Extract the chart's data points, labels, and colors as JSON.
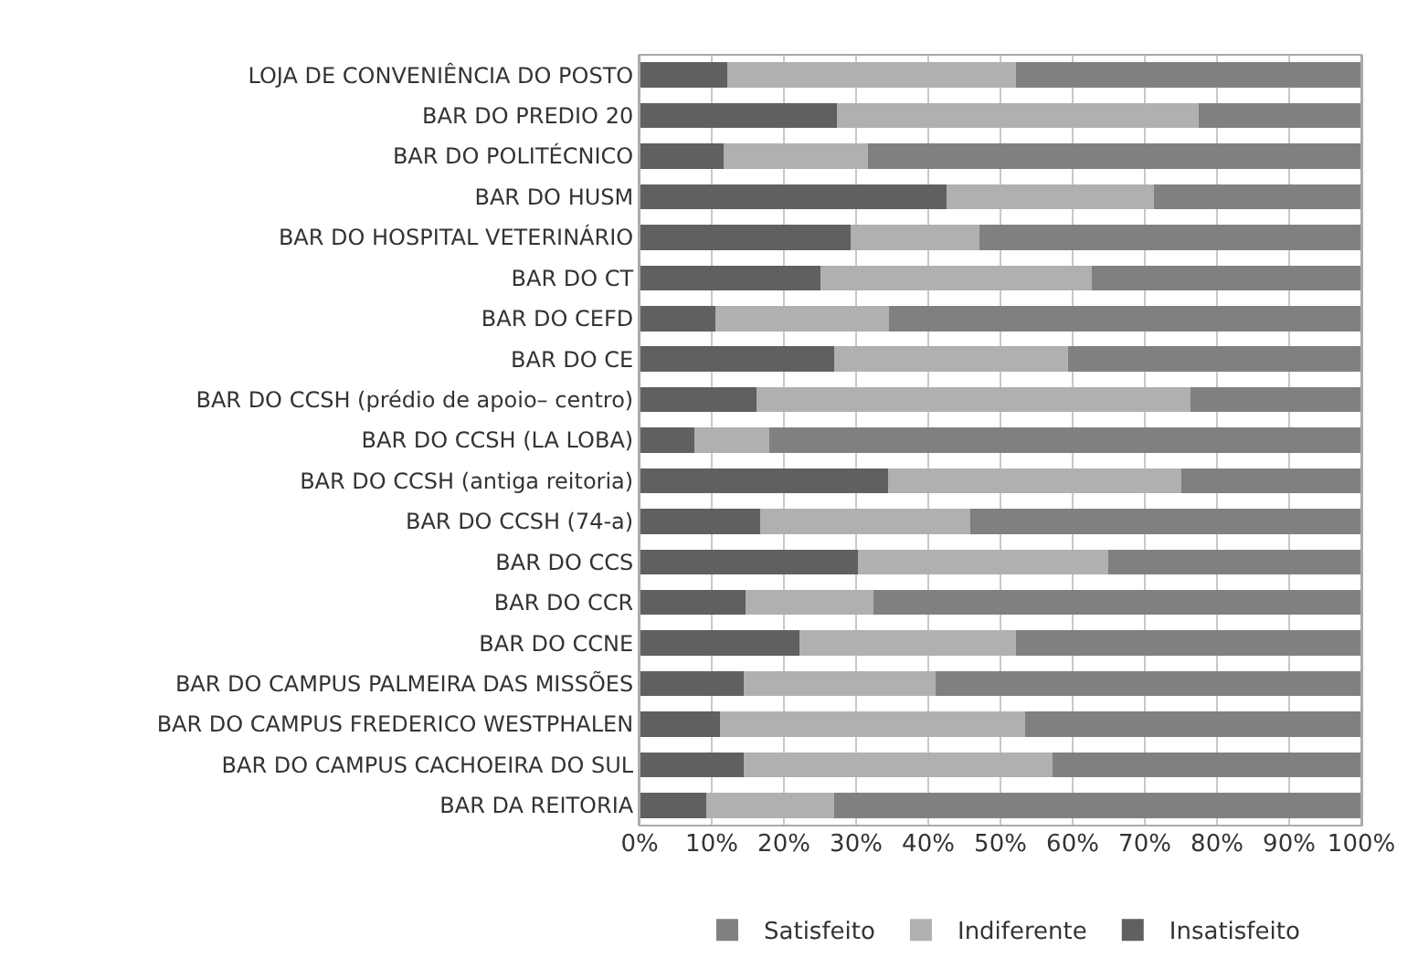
{
  "chart_data": {
    "type": "bar",
    "orientation": "horizontal",
    "stacked": true,
    "categories": [
      "LOJA DE CONVENIÊNCIA DO POSTO",
      "BAR DO PREDIO 20",
      "BAR DO POLITÉCNICO",
      "BAR DO HUSM",
      "BAR DO HOSPITAL VETERINÁRIO",
      "BAR DO CT",
      "BAR DO CEFD",
      "BAR DO CE",
      "BAR DO CCSH (prédio de apoio– centro)",
      "BAR DO CCSH (LA LOBA)",
      "BAR DO CCSH (antiga reitoria)",
      "BAR DO CCSH (74-a)",
      "BAR DO CCS",
      "BAR DO CCR",
      "BAR DO CCNE",
      "BAR DO CAMPUS PALMEIRA DAS MISSÕES",
      "BAR DO CAMPUS FREDERICO WESTPHALEN",
      "BAR DO CAMPUS CACHOEIRA DO SUL",
      "BAR DA REITORIA"
    ],
    "series": [
      {
        "name": "Insatisfeito",
        "color": "#606060",
        "values": [
          12.1,
          27.3,
          11.7,
          42.5,
          29.3,
          25.1,
          10.5,
          27.0,
          16.2,
          7.6,
          34.4,
          16.7,
          30.3,
          14.7,
          22.2,
          14.4,
          11.2,
          14.4,
          9.2
        ]
      },
      {
        "name": "Indiferente",
        "color": "#b0b0b0",
        "values": [
          40.0,
          50.2,
          20.0,
          28.8,
          17.8,
          37.6,
          24.0,
          32.4,
          60.1,
          10.4,
          40.7,
          29.1,
          34.6,
          17.7,
          29.9,
          26.6,
          42.2,
          42.8,
          17.8
        ]
      },
      {
        "name": "Satisfeito",
        "color": "#808080",
        "values": [
          47.9,
          22.5,
          68.3,
          28.7,
          52.9,
          37.3,
          65.5,
          40.6,
          23.7,
          82.0,
          24.9,
          54.2,
          35.1,
          67.6,
          47.9,
          59.0,
          46.6,
          42.8,
          73.0
        ]
      }
    ],
    "xlim": [
      0,
      100
    ],
    "xticks": [
      {
        "value": 0,
        "label": "0%"
      },
      {
        "value": 10,
        "label": "10%"
      },
      {
        "value": 20,
        "label": "20%"
      },
      {
        "value": 30,
        "label": "30%"
      },
      {
        "value": 40,
        "label": "40%"
      },
      {
        "value": 50,
        "label": "50%"
      },
      {
        "value": 60,
        "label": "60%"
      },
      {
        "value": 70,
        "label": "70%"
      },
      {
        "value": 80,
        "label": "80%"
      },
      {
        "value": 90,
        "label": "90%"
      },
      {
        "value": 100,
        "label": "100%"
      }
    ],
    "grid": "x",
    "legend": "bottom"
  }
}
